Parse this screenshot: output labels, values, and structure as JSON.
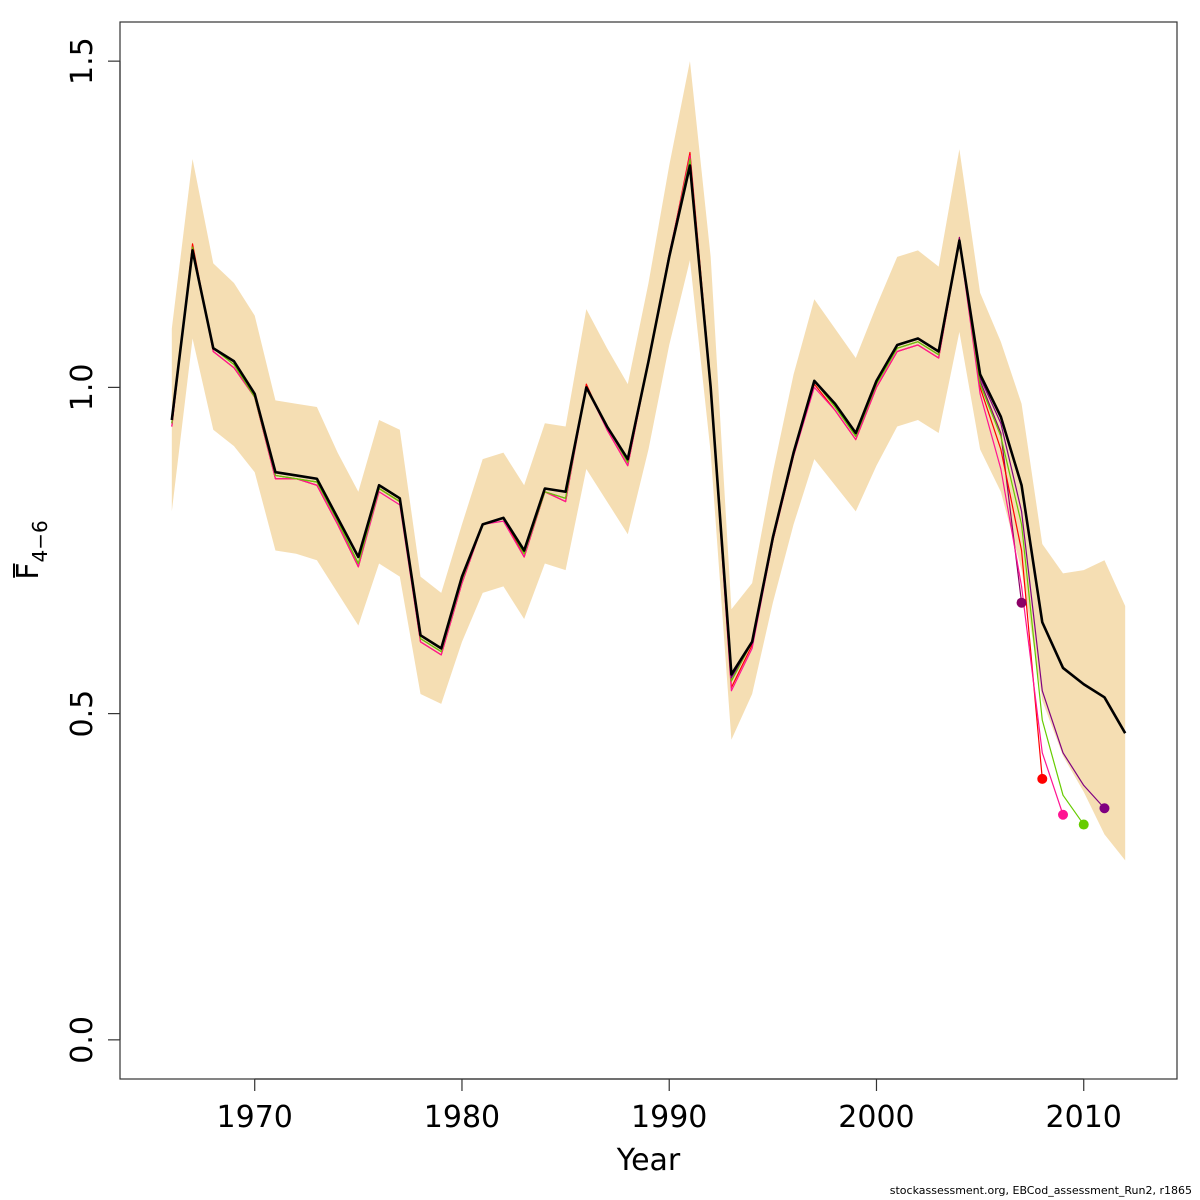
{
  "chart_data": {
    "type": "line",
    "xlabel": "Year",
    "ylabel": {
      "main": "F",
      "sub": "4−6"
    },
    "xlim": [
      1963.5,
      2014.5
    ],
    "ylim": [
      -0.06,
      1.56
    ],
    "x_ticks": [
      1970,
      1980,
      1990,
      2000,
      2010
    ],
    "y_ticks": [
      0.0,
      0.5,
      1.0,
      1.5
    ],
    "y_tick_labels": [
      "0.0",
      "0.5",
      "1.0",
      "1.5"
    ],
    "grid": false,
    "legend": "none",
    "band": {
      "color": "#f5deb3",
      "x": [
        1966,
        1967,
        1968,
        1969,
        1970,
        1971,
        1972,
        1973,
        1974,
        1975,
        1976,
        1977,
        1978,
        1979,
        1980,
        1981,
        1982,
        1983,
        1984,
        1985,
        1986,
        1987,
        1988,
        1989,
        1990,
        1991,
        1992,
        1993,
        1994,
        1995,
        1996,
        1997,
        1998,
        1999,
        2000,
        2001,
        2002,
        2003,
        2004,
        2005,
        2006,
        2007,
        2008,
        2009,
        2010,
        2011,
        2012
      ],
      "upper": [
        1.09,
        1.35,
        1.19,
        1.16,
        1.11,
        0.98,
        0.975,
        0.97,
        0.9,
        0.84,
        0.95,
        0.935,
        0.71,
        0.685,
        0.79,
        0.89,
        0.9,
        0.85,
        0.945,
        0.94,
        1.12,
        1.06,
        1.005,
        1.16,
        1.34,
        1.5,
        1.2,
        0.66,
        0.7,
        0.87,
        1.02,
        1.135,
        1.09,
        1.045,
        1.125,
        1.2,
        1.21,
        1.185,
        1.365,
        1.145,
        1.07,
        0.975,
        0.76,
        0.715,
        0.72,
        0.735,
        0.665
      ],
      "lower": [
        0.81,
        1.075,
        0.935,
        0.91,
        0.87,
        0.75,
        0.745,
        0.735,
        0.685,
        0.635,
        0.73,
        0.71,
        0.53,
        0.515,
        0.61,
        0.685,
        0.695,
        0.645,
        0.73,
        0.72,
        0.875,
        0.825,
        0.775,
        0.905,
        1.065,
        1.195,
        0.9,
        0.46,
        0.53,
        0.67,
        0.79,
        0.89,
        0.85,
        0.81,
        0.88,
        0.94,
        0.95,
        0.93,
        1.085,
        0.905,
        0.84,
        0.72,
        0.52,
        0.435,
        0.38,
        0.315,
        0.275
      ]
    },
    "series": [
      {
        "color": "#000000",
        "width": 2.6,
        "x": [
          1966,
          1967,
          1968,
          1969,
          1970,
          1971,
          1972,
          1973,
          1974,
          1975,
          1976,
          1977,
          1978,
          1979,
          1980,
          1981,
          1982,
          1983,
          1984,
          1985,
          1986,
          1987,
          1988,
          1989,
          1990,
          1991,
          1992,
          1993,
          1994,
          1995,
          1996,
          1997,
          1998,
          1999,
          2000,
          2001,
          2002,
          2003,
          2004,
          2005,
          2006,
          2007,
          2008,
          2009,
          2010,
          2011,
          2012
        ],
        "values": [
          0.95,
          1.21,
          1.06,
          1.04,
          0.99,
          0.87,
          0.865,
          0.86,
          0.8,
          0.74,
          0.85,
          0.83,
          0.62,
          0.6,
          0.71,
          0.79,
          0.8,
          0.75,
          0.845,
          0.84,
          1.0,
          0.94,
          0.89,
          1.04,
          1.2,
          1.34,
          1.0,
          0.56,
          0.61,
          0.77,
          0.9,
          1.01,
          0.975,
          0.93,
          1.01,
          1.065,
          1.075,
          1.055,
          1.225,
          1.02,
          0.955,
          0.85,
          0.64,
          0.57,
          0.545,
          0.525,
          0.47
        ]
      },
      {
        "color": "#8b0066",
        "width": 1.2,
        "point": true,
        "x": [
          1966,
          1967,
          1968,
          1969,
          1970,
          1971,
          1972,
          1973,
          1974,
          1975,
          1976,
          1977,
          1978,
          1979,
          1980,
          1981,
          1982,
          1983,
          1984,
          1985,
          1986,
          1987,
          1988,
          1989,
          1990,
          1991,
          1992,
          1993,
          1994,
          1995,
          1996,
          1997,
          1998,
          1999,
          2000,
          2001,
          2002,
          2003,
          2004,
          2005,
          2006,
          2007
        ],
        "values": [
          0.945,
          1.215,
          1.06,
          1.035,
          0.985,
          0.865,
          0.86,
          0.855,
          0.795,
          0.73,
          0.845,
          0.825,
          0.615,
          0.595,
          0.705,
          0.79,
          0.8,
          0.745,
          0.84,
          0.83,
          1.0,
          0.94,
          0.885,
          1.04,
          1.205,
          1.35,
          1.0,
          0.55,
          0.61,
          0.77,
          0.9,
          1.01,
          0.97,
          0.925,
          1.005,
          1.06,
          1.07,
          1.05,
          1.23,
          1.01,
          0.93,
          0.67
        ]
      },
      {
        "color": "#ff0000",
        "width": 1.2,
        "point": true,
        "x": [
          1966,
          1967,
          1968,
          1969,
          1970,
          1971,
          1972,
          1973,
          1974,
          1975,
          1976,
          1977,
          1978,
          1979,
          1980,
          1981,
          1982,
          1983,
          1984,
          1985,
          1986,
          1987,
          1988,
          1989,
          1990,
          1991,
          1992,
          1993,
          1994,
          1995,
          1996,
          1997,
          1998,
          1999,
          2000,
          2001,
          2002,
          2003,
          2004,
          2005,
          2006,
          2007,
          2008
        ],
        "values": [
          0.94,
          1.22,
          1.055,
          1.03,
          0.985,
          0.86,
          0.86,
          0.85,
          0.79,
          0.725,
          0.845,
          0.825,
          0.61,
          0.59,
          0.7,
          0.79,
          0.8,
          0.74,
          0.84,
          0.825,
          1.005,
          0.935,
          0.88,
          1.04,
          1.2,
          1.36,
          1.005,
          0.54,
          0.605,
          0.765,
          0.895,
          1.005,
          0.965,
          0.92,
          1.0,
          1.055,
          1.065,
          1.045,
          1.225,
          1.0,
          0.905,
          0.75,
          0.4
        ]
      },
      {
        "color": "#ff1493",
        "width": 1.2,
        "point": true,
        "x": [
          1966,
          1967,
          1968,
          1969,
          1970,
          1971,
          1972,
          1973,
          1974,
          1975,
          1976,
          1977,
          1978,
          1979,
          1980,
          1981,
          1982,
          1983,
          1984,
          1985,
          1986,
          1987,
          1988,
          1989,
          1990,
          1991,
          1992,
          1993,
          1994,
          1995,
          1996,
          1997,
          1998,
          1999,
          2000,
          2001,
          2002,
          2003,
          2004,
          2005,
          2006,
          2007,
          2008,
          2009
        ],
        "values": [
          0.94,
          1.215,
          1.055,
          1.03,
          0.985,
          0.86,
          0.86,
          0.85,
          0.79,
          0.725,
          0.84,
          0.82,
          0.61,
          0.59,
          0.7,
          0.79,
          0.795,
          0.74,
          0.84,
          0.825,
          1.0,
          0.935,
          0.88,
          1.04,
          1.2,
          1.355,
          1.0,
          0.535,
          0.6,
          0.765,
          0.895,
          1.0,
          0.965,
          0.92,
          1.0,
          1.055,
          1.065,
          1.045,
          1.225,
          0.99,
          0.875,
          0.695,
          0.44,
          0.345
        ]
      },
      {
        "color": "#66cc00",
        "width": 1.2,
        "point": true,
        "x": [
          1966,
          1967,
          1968,
          1969,
          1970,
          1971,
          1972,
          1973,
          1974,
          1975,
          1976,
          1977,
          1978,
          1979,
          1980,
          1981,
          1982,
          1983,
          1984,
          1985,
          1986,
          1987,
          1988,
          1989,
          1990,
          1991,
          1992,
          1993,
          1994,
          1995,
          1996,
          1997,
          1998,
          1999,
          2000,
          2001,
          2002,
          2003,
          2004,
          2005,
          2006,
          2007,
          2008,
          2009,
          2010
        ],
        "values": [
          0.945,
          1.215,
          1.06,
          1.035,
          0.985,
          0.865,
          0.86,
          0.855,
          0.795,
          0.73,
          0.845,
          0.825,
          0.615,
          0.595,
          0.705,
          0.79,
          0.8,
          0.745,
          0.84,
          0.83,
          1.0,
          0.94,
          0.885,
          1.04,
          1.2,
          1.35,
          1.0,
          0.55,
          0.61,
          0.77,
          0.9,
          1.01,
          0.97,
          0.925,
          1.005,
          1.06,
          1.07,
          1.05,
          1.225,
          1.005,
          0.925,
          0.79,
          0.49,
          0.375,
          0.33
        ]
      },
      {
        "color": "#800080",
        "width": 1.2,
        "point": true,
        "x": [
          1966,
          1967,
          1968,
          1969,
          1970,
          1971,
          1972,
          1973,
          1974,
          1975,
          1976,
          1977,
          1978,
          1979,
          1980,
          1981,
          1982,
          1983,
          1984,
          1985,
          1986,
          1987,
          1988,
          1989,
          1990,
          1991,
          1992,
          1993,
          1994,
          1995,
          1996,
          1997,
          1998,
          1999,
          2000,
          2001,
          2002,
          2003,
          2004,
          2005,
          2006,
          2007,
          2008,
          2009,
          2010,
          2011
        ],
        "values": [
          0.95,
          1.21,
          1.06,
          1.04,
          0.99,
          0.87,
          0.865,
          0.86,
          0.8,
          0.74,
          0.85,
          0.83,
          0.62,
          0.6,
          0.71,
          0.79,
          0.8,
          0.75,
          0.845,
          0.84,
          1.0,
          0.94,
          0.89,
          1.04,
          1.2,
          1.34,
          1.0,
          0.555,
          0.61,
          0.77,
          0.9,
          1.01,
          0.975,
          0.93,
          1.01,
          1.065,
          1.075,
          1.055,
          1.225,
          1.015,
          0.945,
          0.81,
          0.535,
          0.44,
          0.39,
          0.355
        ]
      }
    ]
  },
  "footer": "stockassessment.org, EBCod_assessment_Run2, r1865"
}
